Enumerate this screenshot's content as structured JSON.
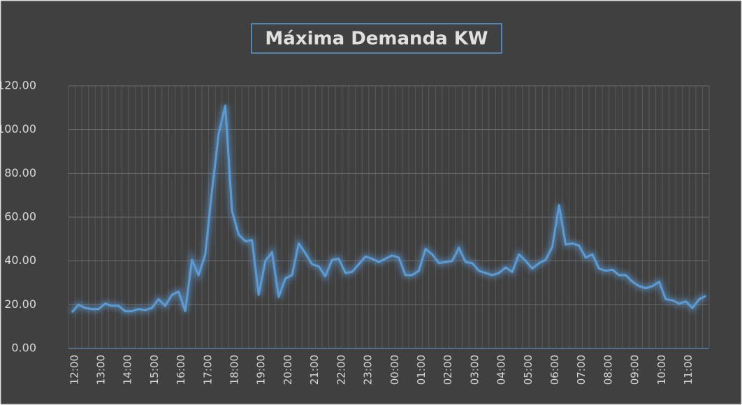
{
  "chart_data": {
    "type": "line",
    "title": "Máxima Demanda KW",
    "categories": [
      "12:00",
      null,
      null,
      null,
      "13:00",
      null,
      null,
      null,
      "14:00",
      null,
      null,
      null,
      "15:00",
      null,
      null,
      null,
      "16:00",
      null,
      null,
      null,
      "17:00",
      null,
      null,
      null,
      "18:00",
      null,
      null,
      null,
      "19:00",
      null,
      null,
      null,
      "20:00",
      null,
      null,
      null,
      "21:00",
      null,
      null,
      null,
      "22:00",
      null,
      null,
      null,
      "23:00",
      null,
      null,
      null,
      "00:00",
      null,
      null,
      null,
      "01:00",
      null,
      null,
      null,
      "02:00",
      null,
      null,
      null,
      "03:00",
      null,
      null,
      null,
      "04:00",
      null,
      null,
      null,
      "05:00",
      null,
      null,
      null,
      "06:00",
      null,
      null,
      null,
      "07:00",
      null,
      null,
      null,
      "08:00",
      null,
      null,
      null,
      "09:00",
      null,
      null,
      null,
      "10:00",
      null,
      null,
      null,
      "11:00",
      null,
      null,
      null
    ],
    "values": [
      16.5,
      20,
      18.5,
      18,
      18,
      20.5,
      19.5,
      19.5,
      17,
      17,
      18,
      17.5,
      18.5,
      22.5,
      19.5,
      24.5,
      26,
      17,
      40.5,
      33.5,
      43,
      72,
      98,
      111,
      63,
      52,
      49,
      49.5,
      24.5,
      40,
      44,
      23.5,
      32,
      33.5,
      48,
      43.5,
      38.5,
      37.5,
      33,
      40.5,
      41,
      34.5,
      35,
      38.5,
      42,
      41,
      39.5,
      41,
      42.5,
      41.5,
      33.5,
      33.5,
      35.5,
      45.5,
      43,
      39,
      39.5,
      40,
      46,
      39.5,
      39,
      35.5,
      34.5,
      33.5,
      34.5,
      37,
      35,
      43,
      40,
      36.5,
      39,
      40.5,
      46.5,
      65.5,
      47.5,
      48,
      47,
      41.5,
      43,
      36.5,
      35.5,
      36,
      33.5,
      33.5,
      30.5,
      28.5,
      27.5,
      28.5,
      30.5,
      22.5,
      22,
      20.5,
      21.5,
      18.5,
      22.5,
      24
    ],
    "color": "#5b9bd5",
    "ylim": [
      0,
      120
    ],
    "yticks": [
      {
        "value": 0,
        "label": "0.00"
      },
      {
        "value": 20,
        "label": "20.00"
      },
      {
        "value": 40,
        "label": "40.00"
      },
      {
        "value": 60,
        "label": "60.00"
      },
      {
        "value": 80,
        "label": "80.00"
      },
      {
        "value": 100,
        "label": "100.00"
      },
      {
        "value": 120,
        "label": "120.00"
      }
    ],
    "grid": true
  }
}
